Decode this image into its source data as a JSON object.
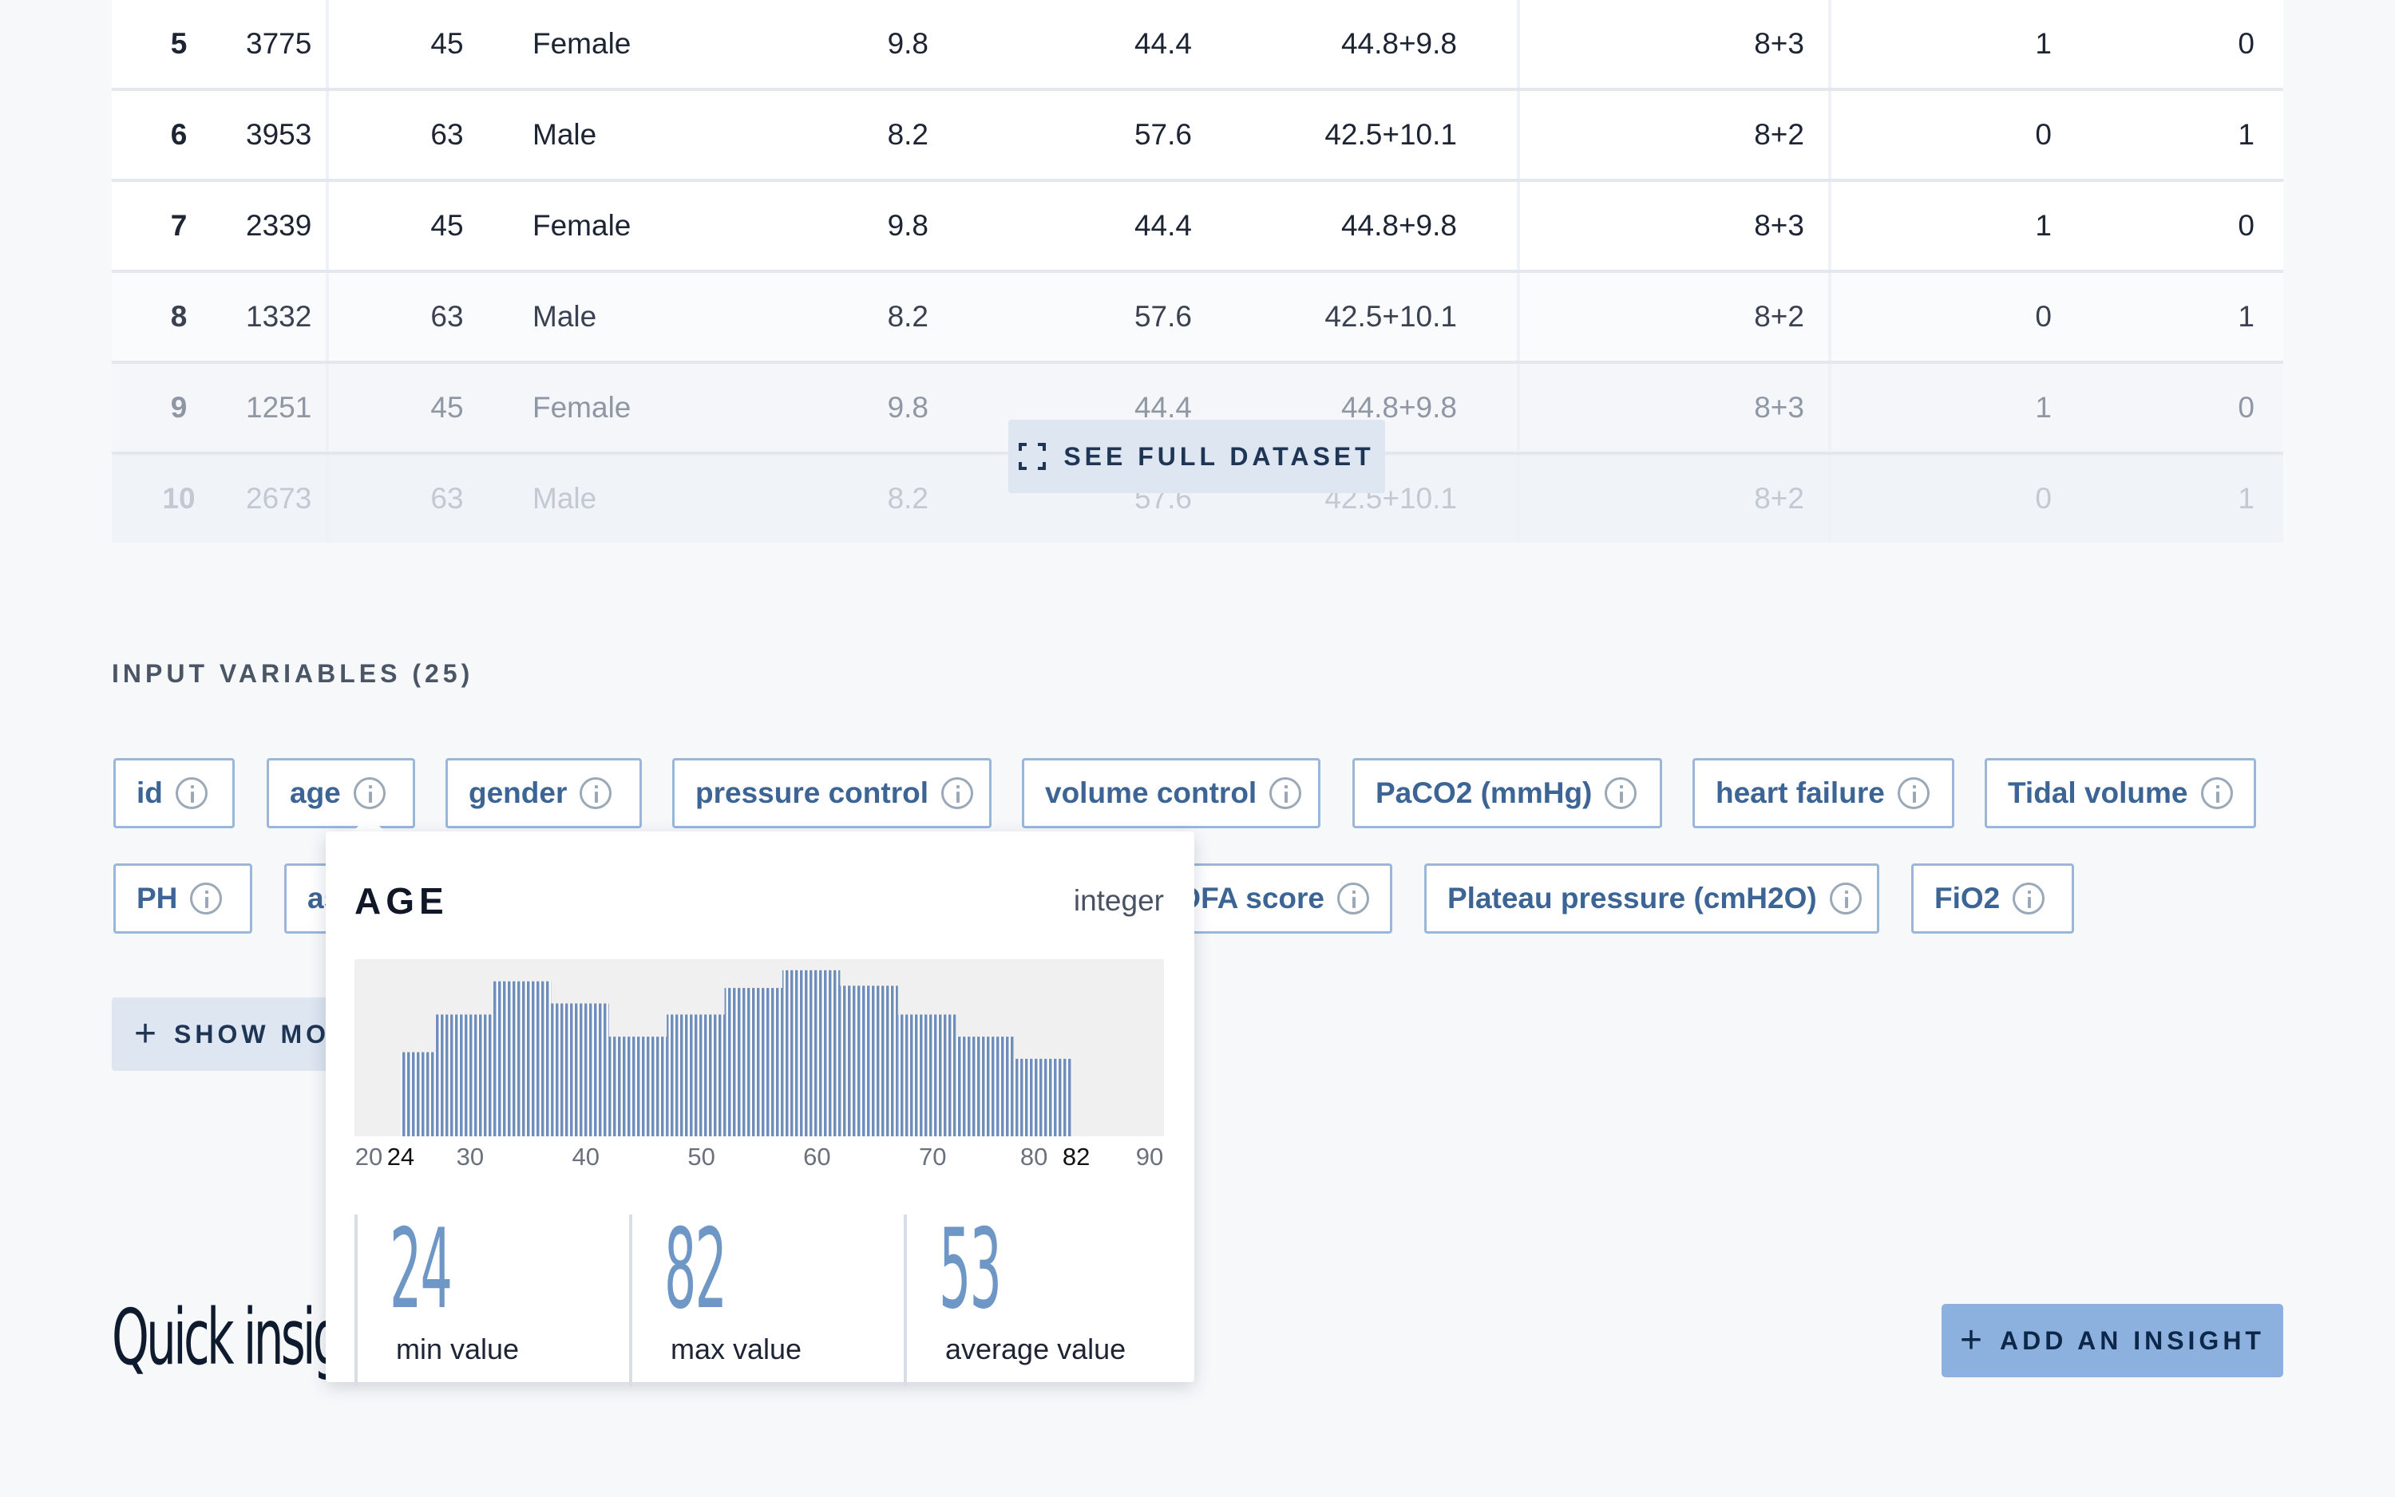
{
  "table": {
    "rows": [
      [
        "5",
        "3775",
        "45",
        "Female",
        "9.8",
        "44.4",
        "44.8+9.8",
        "8+3",
        "1",
        "0"
      ],
      [
        "6",
        "3953",
        "63",
        "Male",
        "8.2",
        "57.6",
        "42.5+10.1",
        "8+2",
        "0",
        "1"
      ],
      [
        "7",
        "2339",
        "45",
        "Female",
        "9.8",
        "44.4",
        "44.8+9.8",
        "8+3",
        "1",
        "0"
      ],
      [
        "8",
        "1332",
        "63",
        "Male",
        "8.2",
        "57.6",
        "42.5+10.1",
        "8+2",
        "0",
        "1"
      ],
      [
        "9",
        "1251",
        "45",
        "Female",
        "9.8",
        "44.4",
        "44.8+9.8",
        "8+3",
        "1",
        "0"
      ],
      [
        "10",
        "2673",
        "63",
        "Male",
        "8.2",
        "57.6",
        "42.5+10.1",
        "8+2",
        "0",
        "1"
      ]
    ],
    "see_full_label": "SEE FULL DATASET"
  },
  "input_variables": {
    "label": "INPUT VARIABLES (25)",
    "chips": [
      "id",
      "age",
      "gender",
      "pressure control",
      "volume control",
      "PaCO2 (mmHg)",
      "heart failure",
      "Tidal volume",
      "PH",
      "as",
      "OFA score",
      "Plateau pressure (cmH2O)",
      "FiO2"
    ],
    "show_more_label": "SHOW MO"
  },
  "quick_insights": {
    "title": "Quick insigh",
    "add_label": "ADD AN INSIGHT"
  },
  "popover": {
    "title": "AGE",
    "type": "integer",
    "min_value": "24",
    "min_label": "min value",
    "max_value": "82",
    "max_label": "max value",
    "avg_value": "53",
    "avg_label": "average value"
  },
  "chart_data": {
    "type": "bar",
    "bins": [
      [
        24,
        27
      ],
      [
        27,
        32
      ],
      [
        32,
        37
      ],
      [
        37,
        42
      ],
      [
        42,
        47
      ],
      [
        47,
        52
      ],
      [
        52,
        57
      ],
      [
        57,
        62
      ],
      [
        62,
        67
      ],
      [
        67,
        72
      ],
      [
        72,
        77
      ],
      [
        77,
        82
      ]
    ],
    "counts": [
      38,
      55,
      70,
      60,
      45,
      55,
      67,
      75,
      68,
      55,
      45,
      35
    ],
    "xlim": [
      20,
      90
    ],
    "x_ticks": [
      "20",
      "24",
      "30",
      "40",
      "50",
      "60",
      "70",
      "80",
      "82",
      "90"
    ],
    "x_tick_values": [
      20,
      24,
      30,
      40,
      50,
      60,
      70,
      80,
      82,
      90
    ],
    "highlight_ticks": [
      "24",
      "82"
    ],
    "bar_color": "#6f8fba",
    "background": "#f0f0f0"
  }
}
